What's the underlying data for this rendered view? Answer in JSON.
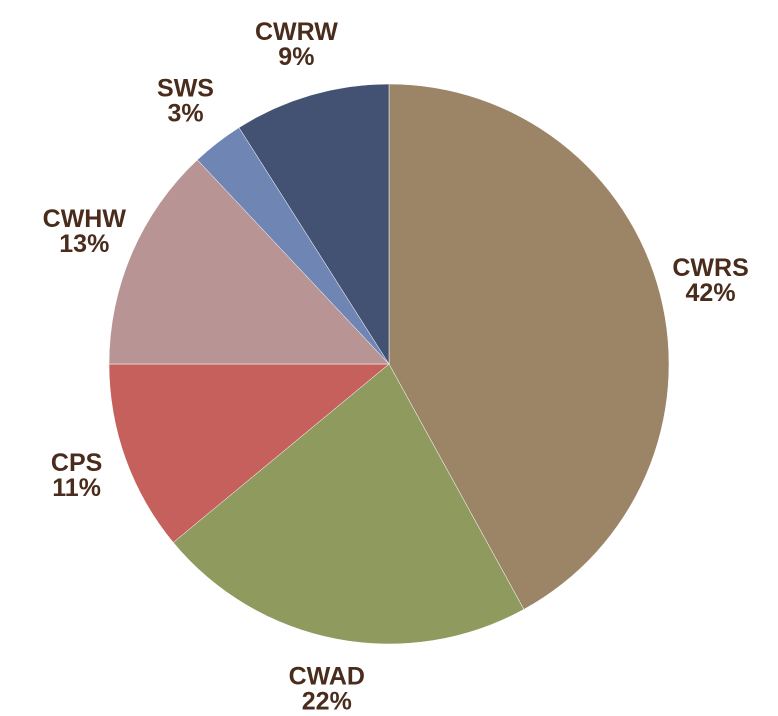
{
  "chart_data": {
    "type": "pie",
    "categories": [
      "CWRS",
      "CWAD",
      "CPS",
      "CWHW",
      "SWS",
      "CWRW"
    ],
    "values": [
      42,
      22,
      11,
      13,
      3,
      9
    ],
    "value_labels": [
      "42%",
      "22%",
      "11%",
      "13%",
      "3%",
      "9%"
    ],
    "colors": [
      "#9c8467",
      "#8e9a5e",
      "#c6605c",
      "#b99494",
      "#6f86b5",
      "#435272"
    ]
  }
}
